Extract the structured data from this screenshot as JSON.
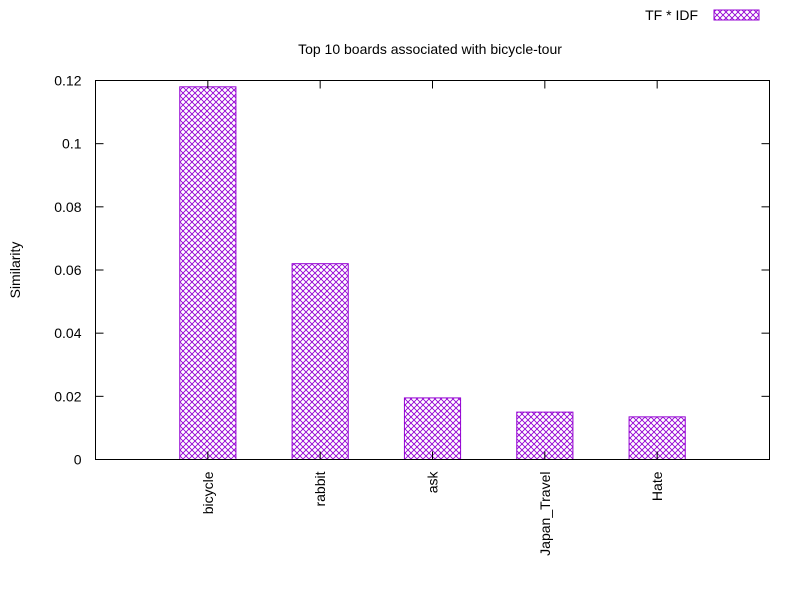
{
  "chart_data": {
    "type": "bar",
    "title": "Top 10 boards associated with bicycle-tour",
    "xlabel": "",
    "ylabel": "Similarity",
    "categories": [
      "bicycle",
      "rabbit",
      "ask",
      "Japan_Travel",
      "Hate"
    ],
    "series": [
      {
        "name": "TF * IDF",
        "values": [
          0.118,
          0.062,
          0.0195,
          0.015,
          0.0135
        ]
      }
    ],
    "ylim": [
      0,
      0.12
    ],
    "yticks": [
      0,
      0.02,
      0.04,
      0.06,
      0.08,
      0.1,
      0.12
    ],
    "ytick_labels": [
      "0",
      "0.02",
      "0.04",
      "0.06",
      "0.08",
      "0.1",
      "0.12"
    ],
    "grid": false,
    "legend_position": "top-right",
    "bar_pattern": "crosshatch",
    "colors": {
      "bar": "#9400d3",
      "frame": "#000000",
      "background": "#ffffff"
    }
  }
}
